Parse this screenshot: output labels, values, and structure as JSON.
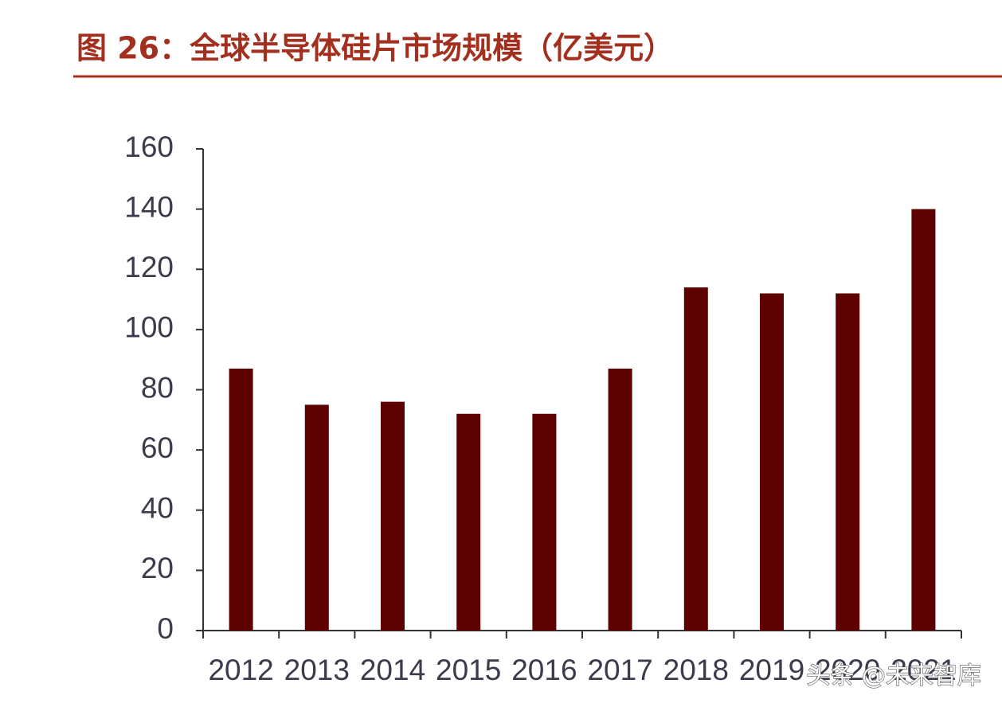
{
  "chart_data": {
    "type": "bar",
    "title": "图 26：全球半导体硅片市场规模（亿美元）",
    "categories": [
      "2012",
      "2013",
      "2014",
      "2015",
      "2016",
      "2017",
      "2018",
      "2019",
      "2020",
      "2021"
    ],
    "values": [
      87,
      75,
      76,
      72,
      72,
      87,
      114,
      112,
      112,
      140
    ],
    "color": "#5c0000",
    "ylim": [
      0,
      160
    ],
    "yticks": [
      0,
      20,
      40,
      60,
      80,
      100,
      120,
      140,
      160
    ],
    "grid": false
  },
  "watermark": "头条 @未来智库"
}
